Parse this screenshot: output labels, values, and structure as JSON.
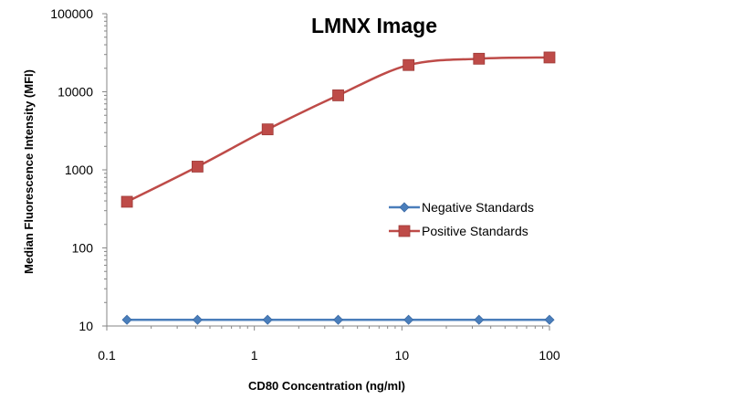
{
  "chart_data": {
    "type": "line",
    "title": "LMNX Image",
    "xlabel": "CD80 Concentration (ng/ml)",
    "ylabel": "Median Fluorescence Intensity (MFI)",
    "x_scale": "log",
    "y_scale": "log",
    "xlim": [
      0.1,
      100
    ],
    "ylim": [
      10,
      100000
    ],
    "x_ticks": [
      0.1,
      1,
      10,
      100
    ],
    "x_tick_labels": [
      "0.1",
      "1",
      "10",
      "100"
    ],
    "y_ticks": [
      10,
      100,
      1000,
      10000,
      100000
    ],
    "y_tick_labels": [
      "10",
      "100",
      "1000",
      "10000",
      "100000"
    ],
    "grid": false,
    "legend_position": "right",
    "series": [
      {
        "name": "Negative Standards",
        "color": "#4a7ebb",
        "marker": "diamond",
        "x": [
          0.137,
          0.412,
          1.23,
          3.7,
          11.1,
          33.3,
          100
        ],
        "y": [
          12,
          12,
          12,
          12,
          12,
          12,
          12
        ]
      },
      {
        "name": "Positive Standards",
        "color": "#be4b48",
        "marker": "square",
        "x": [
          0.137,
          0.412,
          1.23,
          3.7,
          11.1,
          33.3,
          100
        ],
        "y": [
          390,
          1100,
          3300,
          9000,
          22000,
          26500,
          27500
        ]
      }
    ]
  }
}
